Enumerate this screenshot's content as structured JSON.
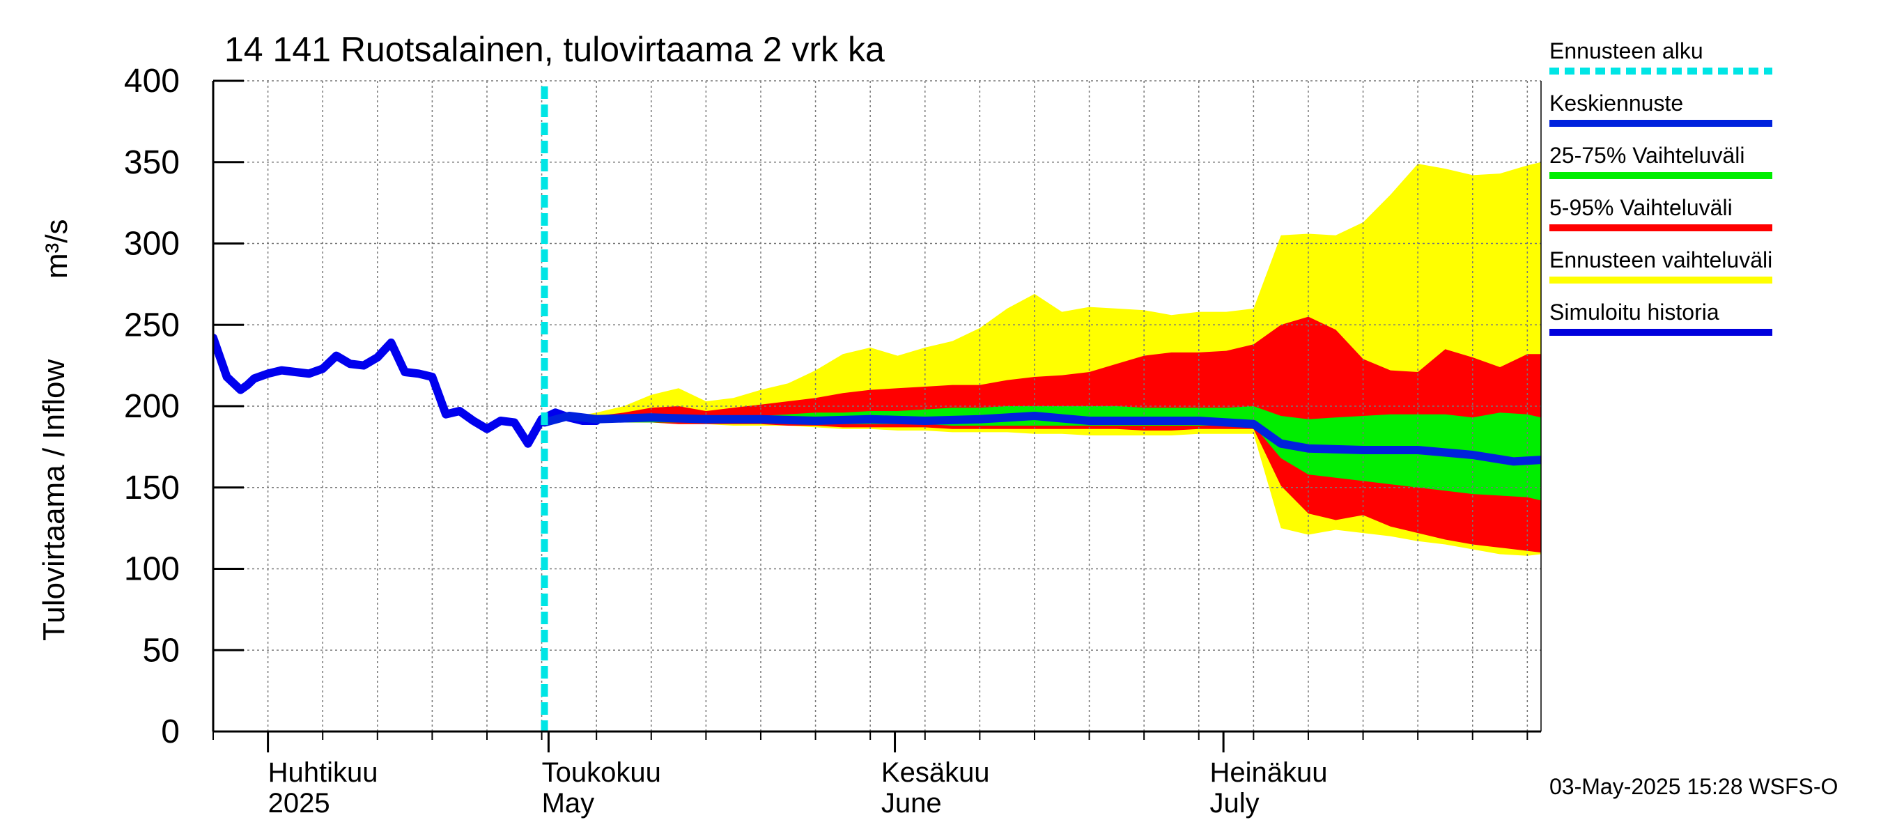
{
  "chart_data": {
    "type": "area",
    "title": "14 141 Ruotsalainen, tulovirtaama 2 vrk ka",
    "ylabel": "Tulovirtaama / Inflow",
    "yunit": "m³/s",
    "ylim": [
      0,
      400
    ],
    "yticks": [
      0,
      50,
      100,
      150,
      200,
      250,
      300,
      350,
      400
    ],
    "xlim_days": [
      0,
      97
    ],
    "x_unit": "days since 2025-03-28",
    "grid": true,
    "month_labels": [
      {
        "day": 4,
        "fi": "Huhtikuu",
        "en": "2025"
      },
      {
        "day": 24,
        "fi": "Toukokuu",
        "en": "May"
      },
      {
        "day": 48.8,
        "fi": "Kesäkuu",
        "en": "June"
      },
      {
        "day": 72.8,
        "fi": "Heinäkuu",
        "en": "July"
      }
    ],
    "month_boundaries": [
      4,
      24.5,
      49.8,
      73.8
    ],
    "forecast_start_day": 24.2,
    "legend": [
      {
        "label": "Ennusteen alku",
        "color": "#00e5e5",
        "style": "dotted"
      },
      {
        "label": "Keskiennuste",
        "color": "#0022dd",
        "style": "solid"
      },
      {
        "label": "25-75% Vaihteluväli",
        "color": "#00ee00",
        "style": "solid"
      },
      {
        "label": "5-95% Vaihteluväli",
        "color": "#ff0000",
        "style": "solid"
      },
      {
        "label": "Ennusteen vaihteluväli",
        "color": "#ffff00",
        "style": "solid"
      },
      {
        "label": "Simuloitu historia",
        "color": "#0000dd",
        "style": "solid"
      }
    ],
    "series": [
      {
        "name": "Simuloitu historia",
        "color": "#0000ee",
        "x": [
          0,
          1,
          2,
          2.5,
          3,
          4,
          5,
          6,
          7,
          8,
          9,
          10,
          11,
          12,
          13,
          14,
          15,
          16,
          17,
          18,
          19,
          20,
          21,
          22,
          23,
          24,
          25,
          26,
          27,
          28
        ],
        "y": [
          242,
          218,
          210,
          213,
          217,
          220,
          222,
          221,
          220,
          223,
          231,
          226,
          225,
          230,
          239,
          221,
          220,
          218,
          195,
          197,
          191,
          186,
          191,
          190,
          177,
          192,
          196,
          193,
          191,
          191
        ]
      },
      {
        "name": "Keskiennuste",
        "color": "#0022dd",
        "x": [
          24.2,
          26,
          28,
          32,
          36,
          40,
          44,
          48,
          52,
          56,
          60,
          64,
          68,
          72,
          76,
          78,
          80,
          84,
          88,
          92,
          95,
          97
        ],
        "y": [
          190,
          194,
          192,
          193,
          192,
          192,
          191,
          192,
          191,
          192,
          194,
          191,
          191,
          191,
          189,
          177,
          174,
          173,
          173,
          170,
          166,
          167
        ]
      }
    ],
    "bands": [
      {
        "name": "Ennusteen vaihteluväli",
        "color": "#ffff00",
        "x": [
          26,
          28,
          30,
          32,
          34,
          36,
          38,
          40,
          42,
          44,
          46,
          48,
          50,
          52,
          54,
          56,
          58,
          60,
          62,
          64,
          66,
          68,
          70,
          72,
          74,
          76,
          78,
          80,
          82,
          84,
          86,
          88,
          90,
          92,
          94,
          96,
          97
        ],
        "upper": [
          193,
          196,
          200,
          207,
          211,
          203,
          205,
          210,
          214,
          222,
          232,
          236,
          231,
          236,
          240,
          248,
          260,
          269,
          258,
          261,
          260,
          259,
          256,
          258,
          258,
          260,
          305,
          306,
          305,
          313,
          330,
          349,
          346,
          342,
          343,
          348,
          350
        ],
        "lower": [
          191,
          191,
          190,
          190,
          189,
          189,
          188,
          188,
          188,
          187,
          186,
          186,
          185,
          185,
          184,
          184,
          184,
          183,
          183,
          182,
          182,
          182,
          182,
          183,
          183,
          183,
          125,
          121,
          124,
          122,
          120,
          117,
          115,
          112,
          109,
          108,
          109
        ]
      },
      {
        "name": "5-95% Vaihteluväli",
        "color": "#ff0000",
        "x": [
          26,
          28,
          30,
          32,
          34,
          36,
          38,
          40,
          42,
          44,
          46,
          48,
          50,
          52,
          54,
          56,
          58,
          60,
          62,
          64,
          66,
          68,
          70,
          72,
          74,
          76,
          78,
          80,
          82,
          84,
          86,
          88,
          90,
          92,
          94,
          96,
          97
        ],
        "upper": [
          193,
          194,
          196,
          199,
          200,
          197,
          199,
          201,
          203,
          205,
          208,
          210,
          211,
          212,
          213,
          213,
          216,
          218,
          219,
          221,
          226,
          231,
          233,
          233,
          234,
          238,
          250,
          255,
          247,
          229,
          222,
          221,
          235,
          230,
          224,
          232,
          232
        ],
        "lower": [
          191,
          191,
          190,
          190,
          189,
          189,
          189,
          189,
          188,
          188,
          187,
          187,
          187,
          187,
          186,
          186,
          186,
          186,
          186,
          186,
          186,
          185,
          185,
          186,
          186,
          186,
          151,
          134,
          130,
          133,
          126,
          122,
          118,
          115,
          113,
          111,
          110
        ]
      },
      {
        "name": "25-75% Vaihteluväli",
        "color": "#00ee00",
        "x": [
          26,
          28,
          30,
          32,
          34,
          36,
          38,
          40,
          42,
          44,
          46,
          48,
          50,
          52,
          54,
          56,
          58,
          60,
          62,
          64,
          66,
          68,
          70,
          72,
          74,
          76,
          78,
          80,
          82,
          84,
          86,
          88,
          90,
          92,
          94,
          96,
          97
        ],
        "upper": [
          192,
          192,
          193,
          194,
          194,
          193,
          194,
          194,
          195,
          196,
          196,
          197,
          197,
          198,
          199,
          199,
          200,
          200,
          200,
          200,
          200,
          199,
          199,
          199,
          199,
          200,
          194,
          192,
          193,
          194,
          195,
          195,
          195,
          193,
          196,
          195,
          193
        ],
        "lower": [
          191,
          190,
          190,
          190,
          190,
          190,
          190,
          190,
          189,
          189,
          189,
          189,
          189,
          189,
          188,
          188,
          188,
          188,
          188,
          188,
          188,
          188,
          188,
          188,
          188,
          188,
          168,
          158,
          156,
          154,
          152,
          150,
          148,
          146,
          145,
          144,
          142
        ]
      }
    ]
  },
  "footer": {
    "timestamp": "03-May-2025 15:28 WSFS-O"
  }
}
